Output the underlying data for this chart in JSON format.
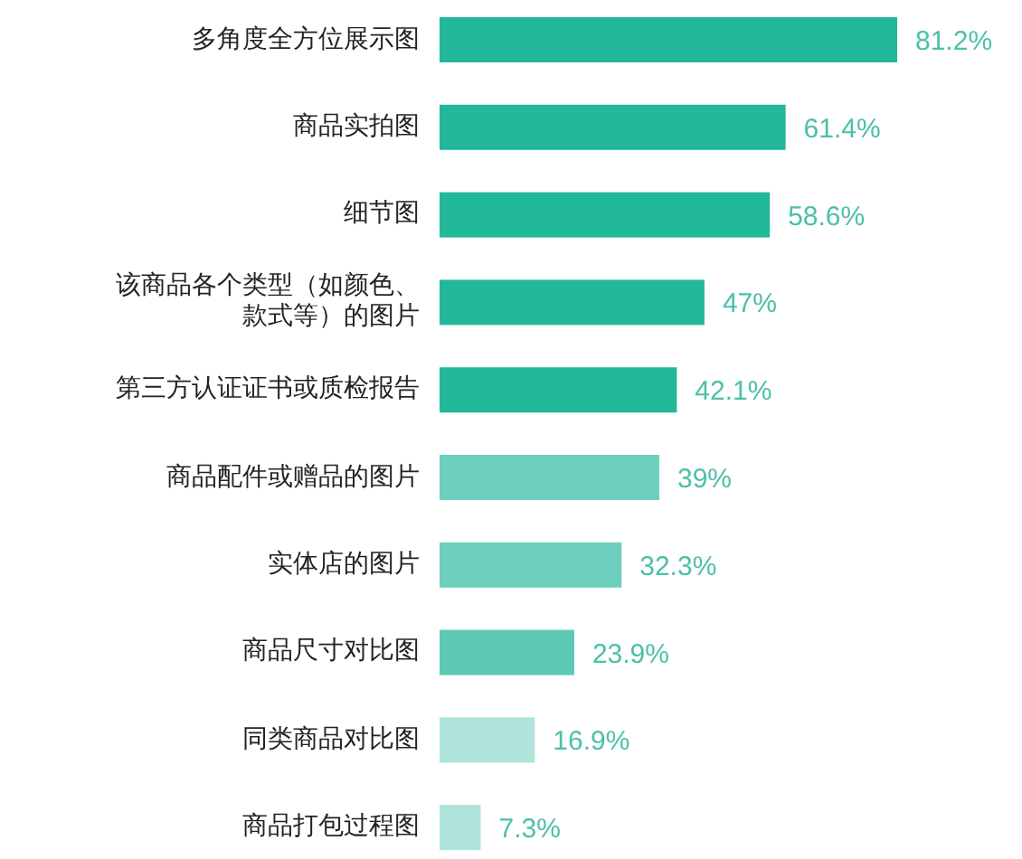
{
  "chart_data": {
    "type": "bar",
    "orientation": "horizontal",
    "categories": [
      "多角度全方位展示图",
      "商品实拍图",
      "细节图",
      "该商品各个类型（如颜色、款式等）的图片",
      "第三方认证证书或质检报告",
      "商品配件或赠品的图片",
      "实体店的图片",
      "商品尺寸对比图",
      "同类商品对比图",
      "商品打包过程图"
    ],
    "values": [
      81.2,
      61.4,
      58.6,
      47,
      42.1,
      39,
      32.3,
      23.9,
      16.9,
      7.3
    ],
    "colors": [
      "#22b89a",
      "#22b89a",
      "#22b89a",
      "#22b89a",
      "#22b89a",
      "#6dcfbd",
      "#6dcfbd",
      "#5ccab5",
      "#aee4da",
      "#aee4da"
    ],
    "value_labels": [
      "81.2%",
      "61.4%",
      "58.6%",
      "47%",
      "42.1%",
      "39%",
      "32.3%",
      "23.9%",
      "16.9%",
      "7.3%"
    ]
  }
}
